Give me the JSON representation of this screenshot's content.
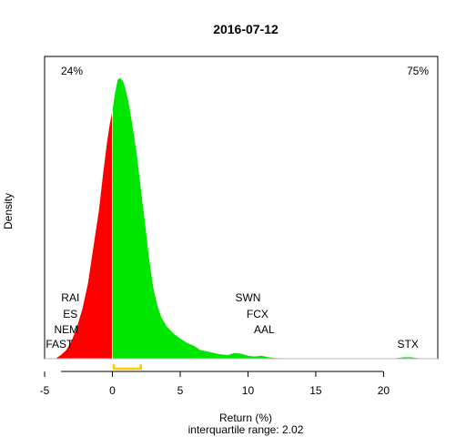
{
  "chart_data": {
    "type": "area",
    "title": "2016-07-12",
    "xlabel": "Return (%)",
    "subtitle": "interquartile range: 2.02",
    "ylabel": "Density",
    "xlim": [
      -5.0,
      24.0
    ],
    "ylim": [
      0.0,
      0.42
    ],
    "x_ticks": [
      -5,
      0,
      5,
      10,
      15,
      20
    ],
    "pct_negative": "24%",
    "pct_positive": "75%",
    "colors": {
      "negative": "#ff0000",
      "positive": "#00e600",
      "iqr": "#ffcc00",
      "neg_text": "#ff0000",
      "pos_text": "#009900"
    },
    "iqr": {
      "low": 0.1,
      "high": 2.1
    },
    "density": {
      "x": [
        -4.2,
        -3.8,
        -3.4,
        -3.0,
        -2.6,
        -2.2,
        -1.8,
        -1.4,
        -1.0,
        -0.7,
        -0.4,
        -0.2,
        0.0,
        0.2,
        0.4,
        0.6,
        0.8,
        1.0,
        1.2,
        1.5,
        1.8,
        2.1,
        2.4,
        2.7,
        3.0,
        3.3,
        3.6,
        4.0,
        4.5,
        5.0,
        5.5,
        6.0,
        6.5,
        7.0,
        7.5,
        8.0,
        8.5,
        9.0,
        9.5,
        10.0,
        10.5,
        11.0,
        11.5,
        12.0,
        13.0,
        15.0,
        18.0,
        20.5,
        21.0,
        21.5,
        22.0,
        22.5,
        23.0
      ],
      "y": [
        0.0,
        0.005,
        0.012,
        0.025,
        0.045,
        0.07,
        0.105,
        0.155,
        0.205,
        0.255,
        0.3,
        0.325,
        0.345,
        0.37,
        0.388,
        0.39,
        0.385,
        0.372,
        0.355,
        0.322,
        0.284,
        0.235,
        0.19,
        0.14,
        0.1,
        0.075,
        0.058,
        0.045,
        0.035,
        0.028,
        0.022,
        0.018,
        0.012,
        0.01,
        0.008,
        0.006,
        0.005,
        0.008,
        0.007,
        0.004,
        0.003,
        0.004,
        0.002,
        0.001,
        0.0005,
        0.0,
        0.0,
        0.0,
        0.001,
        0.002,
        0.002,
        0.001,
        0.0
      ]
    },
    "annotations": [
      {
        "text": "RAI",
        "x": -3.1,
        "level": 4
      },
      {
        "text": "ES",
        "x": -3.1,
        "level": 3
      },
      {
        "text": "NEM",
        "x": -3.4,
        "level": 2
      },
      {
        "text": "FAST",
        "x": -3.9,
        "level": 1
      },
      {
        "text": "SWN",
        "x": 10.0,
        "level": 4
      },
      {
        "text": "FCX",
        "x": 10.7,
        "level": 3
      },
      {
        "text": "AAL",
        "x": 11.2,
        "level": 2
      },
      {
        "text": "STX",
        "x": 21.8,
        "level": 1
      }
    ]
  }
}
